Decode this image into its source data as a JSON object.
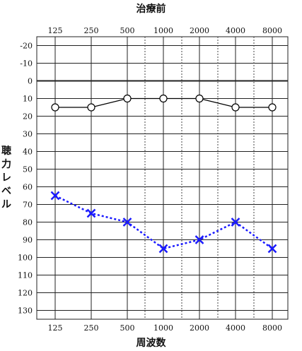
{
  "chart_data": {
    "type": "line",
    "title": "治療前",
    "xlabel": "周波数",
    "ylabel": "聴力レベル",
    "x": [
      "125",
      "250",
      "500",
      "1000",
      "2000",
      "4000",
      "8000"
    ],
    "yticks": [
      "-20",
      "-10",
      "0",
      "10",
      "20",
      "30",
      "40",
      "50",
      "60",
      "70",
      "80",
      "90",
      "100",
      "110",
      "120",
      "130"
    ],
    "ylim": [
      -25,
      135
    ],
    "y_inverted": true,
    "grid": true,
    "series": [
      {
        "marker": "circle",
        "color": "#000000",
        "line": "solid",
        "values": [
          15,
          15,
          10,
          10,
          10,
          15,
          15
        ]
      },
      {
        "marker": "cross",
        "color": "#1a1aff",
        "line": "dotted",
        "values": [
          65,
          75,
          80,
          95,
          90,
          80,
          95
        ]
      }
    ]
  }
}
